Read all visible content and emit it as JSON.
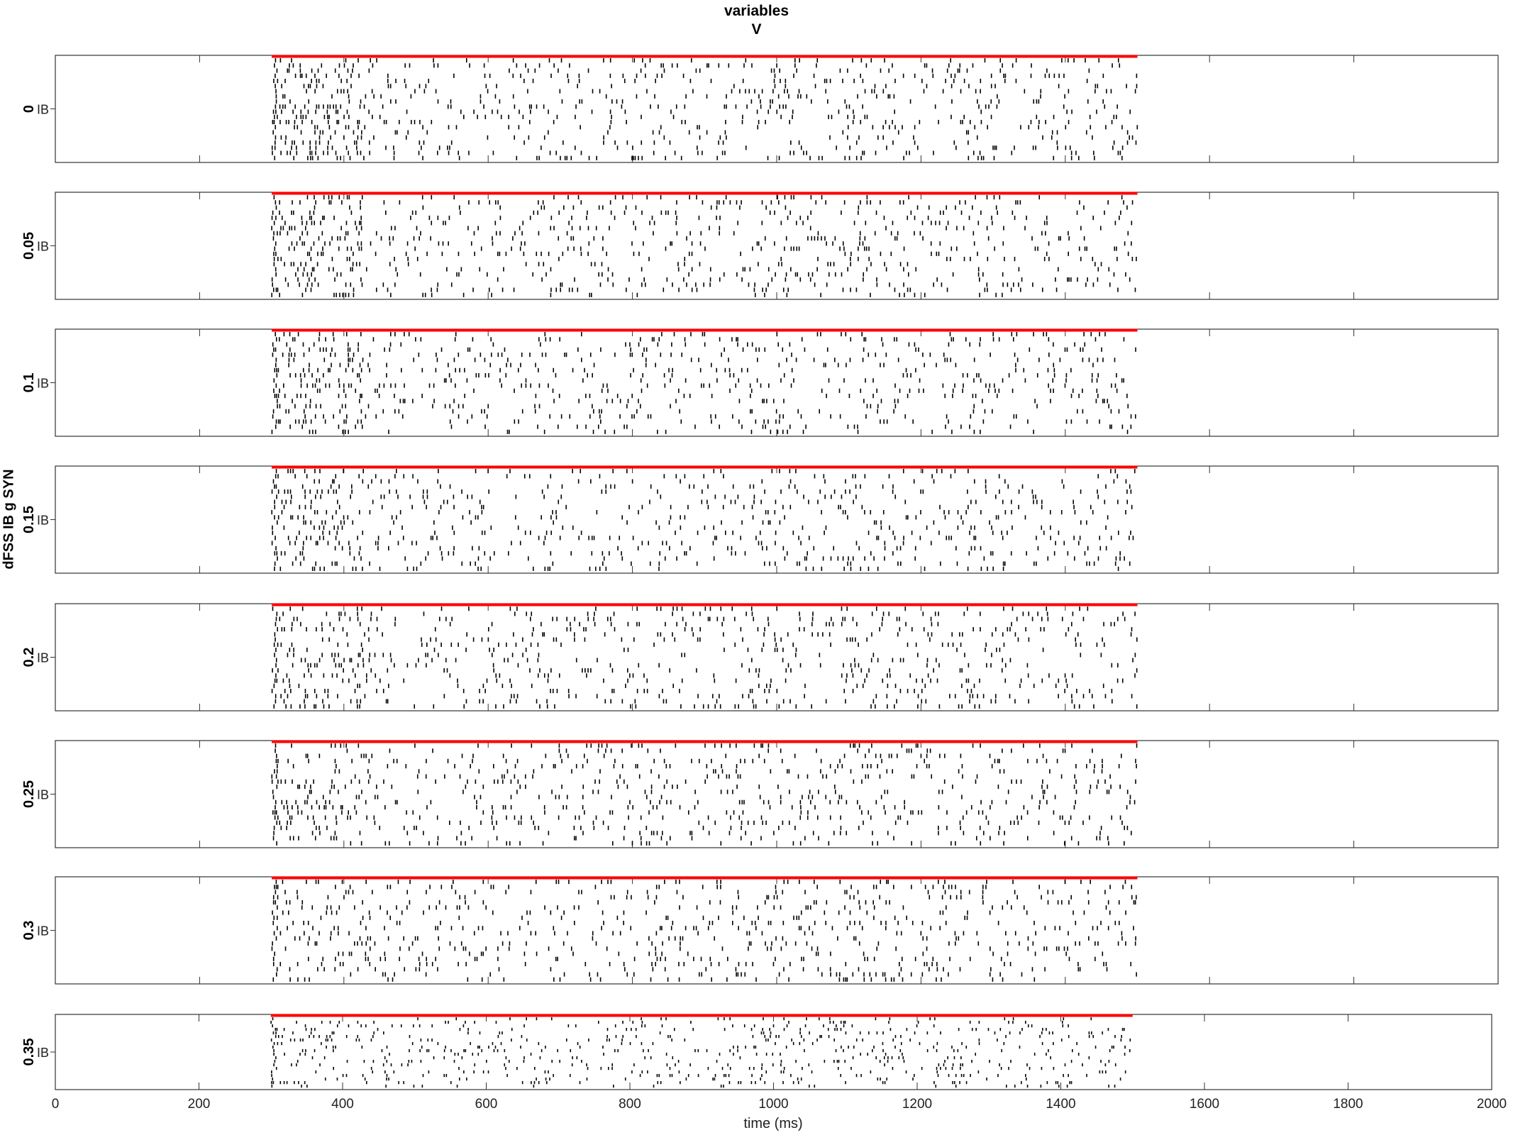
{
  "figure": {
    "title_line1": "variables",
    "title_line2": "V",
    "super_ylabel": "dFSS IB g SYN",
    "xlabel": "time (ms)"
  },
  "chart_data": {
    "type": "raster",
    "title": "variables\nV",
    "xlabel": "time (ms)",
    "ylabel": "dFSS IB g SYN",
    "xlim": [
      0,
      2000
    ],
    "x_ticks": [
      0,
      200,
      400,
      600,
      800,
      1000,
      1200,
      1400,
      1600,
      1800,
      2000
    ],
    "population_label": "IB",
    "stimulus_bar": {
      "color": "#ff0000",
      "start_ms": 300,
      "end_ms": 1500
    },
    "spike_color": "#000000",
    "estimated_rows_per_panel": 20,
    "activity_window_ms": [
      300,
      1500
    ],
    "panels": [
      {
        "param_value": "0"
      },
      {
        "param_value": "0.05"
      },
      {
        "param_value": "0.1"
      },
      {
        "param_value": "0.15"
      },
      {
        "param_value": "0.2"
      },
      {
        "param_value": "0.25"
      },
      {
        "param_value": "0.3"
      },
      {
        "param_value": "0.35"
      }
    ]
  }
}
